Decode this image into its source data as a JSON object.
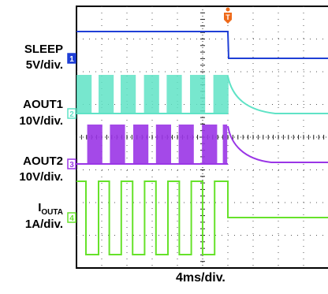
{
  "chart_data": {
    "type": "line",
    "title": "",
    "xlabel": "4ms/div.",
    "time_per_div_ms": 4,
    "divisions_x": 10,
    "divisions_y": 8,
    "grid": true,
    "trigger_marker": "T",
    "trigger_time_ms": 24,
    "channels": [
      {
        "id": "1",
        "name": "SLEEP",
        "scale": "5V/div.",
        "color": "#1f3fd6",
        "description_points_ms": [
          [
            0,
            5
          ],
          [
            24,
            5
          ],
          [
            24,
            0
          ],
          [
            40,
            0
          ]
        ],
        "unit": "V"
      },
      {
        "id": "2",
        "name": "AOUT1",
        "scale": "10V/div.",
        "color": "#5fe3c6",
        "pwm_bursts_ms": [
          [
            0,
            2.4
          ],
          [
            3.5,
            5.9
          ],
          [
            7.0,
            9.4
          ],
          [
            10.7,
            13.1
          ],
          [
            14.3,
            16.7
          ],
          [
            18.0,
            20.4
          ],
          [
            21.7,
            24.1
          ]
        ],
        "high_V": 12,
        "low_V": 0,
        "after_trigger": "decays to ~0V"
      },
      {
        "id": "3",
        "name": "AOUT2",
        "scale": "10V/div.",
        "color": "#9a35e6",
        "pwm_bursts_ms": [
          [
            1.7,
            4.1
          ],
          [
            5.3,
            7.7
          ],
          [
            9.0,
            11.4
          ],
          [
            12.6,
            15.0
          ],
          [
            16.2,
            18.6
          ],
          [
            19.9,
            22.3
          ],
          [
            23.2,
            23.9
          ]
        ],
        "high_V": 12,
        "low_V": 0,
        "after_trigger": "decays to ~0V"
      },
      {
        "id": "4",
        "name": "I",
        "name_sub": "OUTA",
        "scale": "1A/div.",
        "color": "#66e22a",
        "square_wave_ms": [
          [
            0,
            1.5,
            1.5
          ],
          [
            1.5,
            3.5,
            -1.5
          ],
          [
            3.5,
            5.2,
            1.5
          ],
          [
            5.2,
            7.1,
            -1.5
          ],
          [
            7.1,
            8.9,
            1.5
          ],
          [
            8.9,
            10.8,
            -1.5
          ],
          [
            10.8,
            12.6,
            1.5
          ],
          [
            12.6,
            14.5,
            -1.5
          ],
          [
            14.5,
            16.3,
            1.5
          ],
          [
            16.3,
            18.2,
            -1.5
          ],
          [
            18.2,
            20.0,
            1.5
          ],
          [
            20.0,
            21.9,
            -1.5
          ],
          [
            21.9,
            24.0,
            1.5
          ]
        ],
        "after_trigger_A": 0,
        "unit": "A"
      }
    ]
  },
  "labels": {
    "sleep_name": "SLEEP",
    "sleep_scale": "5V/div.",
    "aout1_name": "AOUT1",
    "aout1_scale": "10V/div.",
    "aout2_name": "AOUT2",
    "aout2_scale": "10V/div.",
    "iouta_name": "I",
    "iouta_sub": "OUTA",
    "iouta_scale": "1A/div.",
    "footer": "4ms/div."
  },
  "markers": {
    "ch1": "1",
    "ch2": "2",
    "ch3": "3",
    "ch4": "4",
    "trigger": "T"
  }
}
